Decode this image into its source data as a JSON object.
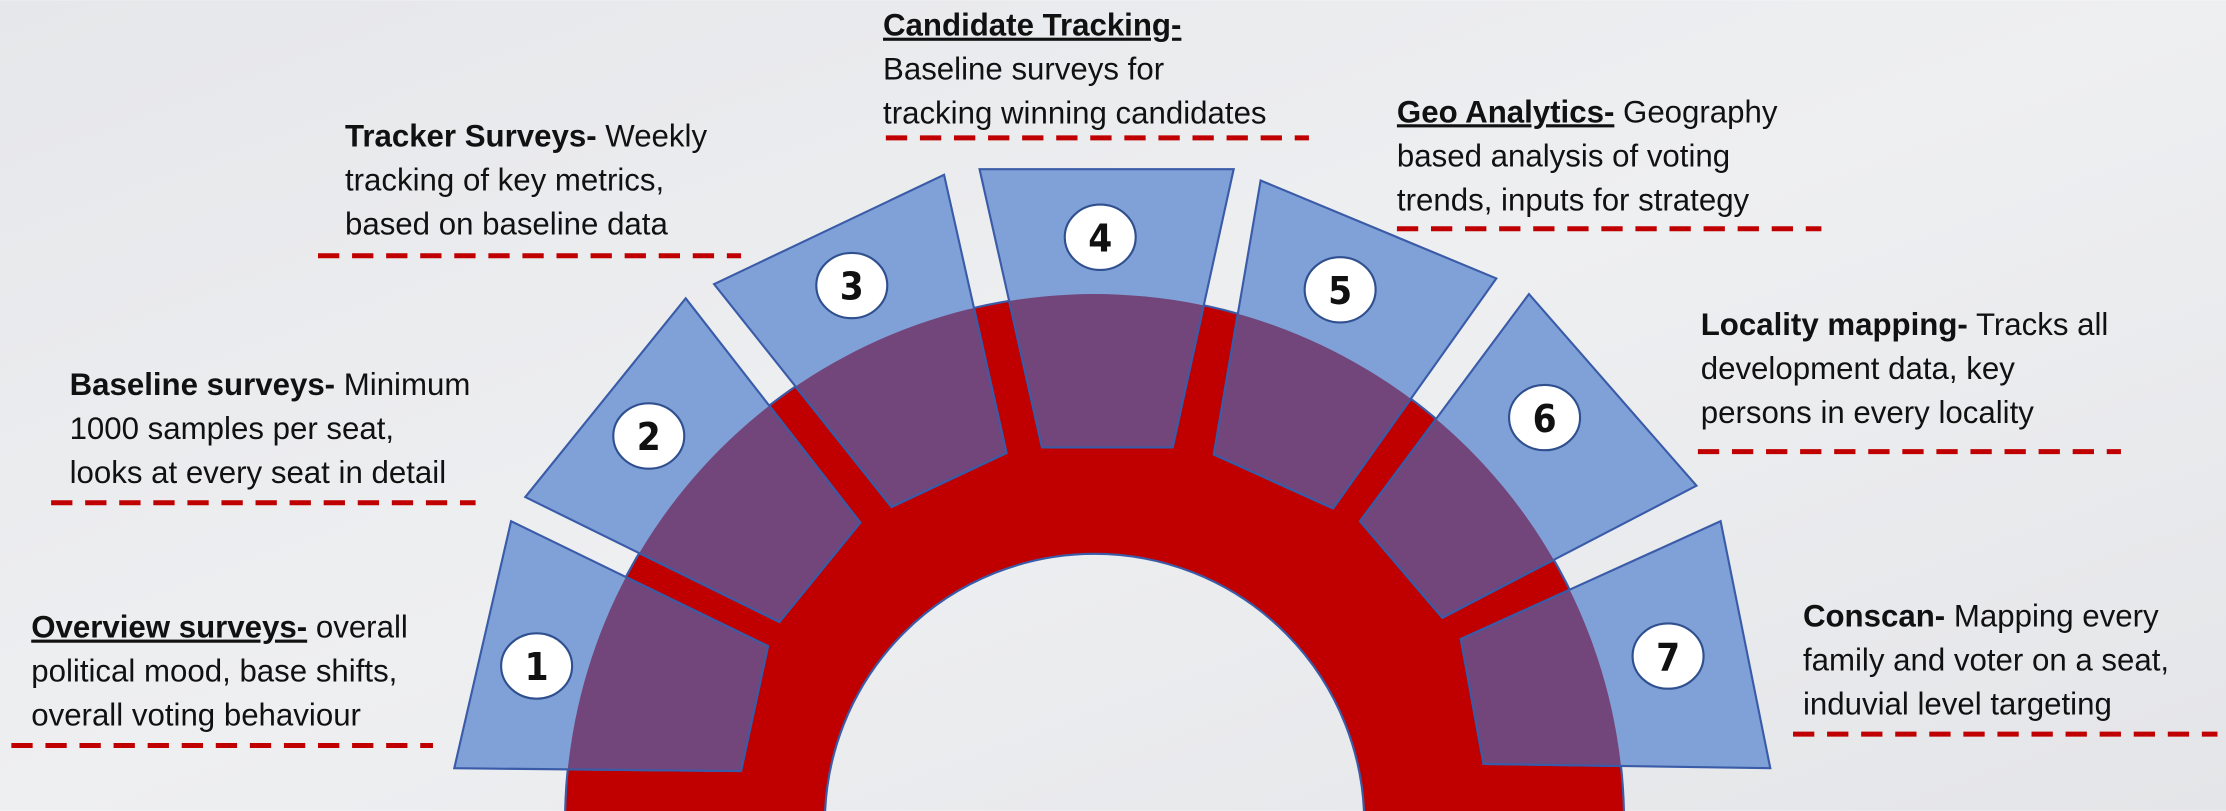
{
  "items": [
    {
      "number": "1",
      "title": "Overview surveys-",
      "lines": [
        " overall",
        "political mood, base shifts,",
        "overall voting behaviour"
      ]
    },
    {
      "number": "2",
      "title": "Baseline surveys-",
      "lines": [
        " Minimum",
        "1000 samples per seat,",
        "looks at every seat in detail"
      ]
    },
    {
      "number": "3",
      "title": "Tracker Surveys-",
      "lines": [
        " Weekly",
        "tracking of key metrics,",
        "based on baseline data"
      ]
    },
    {
      "number": "4",
      "title": "Candidate Tracking-",
      "lines": [
        "Baseline surveys for",
        "tracking winning candidates"
      ]
    },
    {
      "number": "5",
      "title": "Geo Analytics-",
      "lines": [
        " Geography",
        "based analysis of voting",
        "trends, inputs for strategy"
      ]
    },
    {
      "number": "6",
      "title": "Locality mapping-",
      "lines": [
        " Tracks all",
        "development data, key",
        "persons in every locality"
      ]
    },
    {
      "number": "7",
      "title": "Conscan-",
      "lines": [
        " Mapping every",
        "family and voter on a seat,",
        "induvial level targeting"
      ]
    }
  ]
}
